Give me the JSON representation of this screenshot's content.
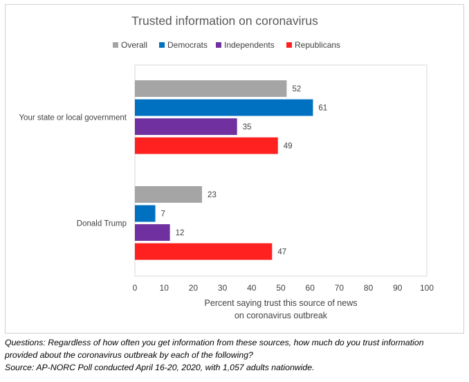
{
  "chart_data": {
    "type": "bar",
    "orientation": "horizontal",
    "title": "Trusted information on coronavirus",
    "xlabel_lines": [
      "Percent saying trust this source of news",
      "on coronavirus outbreak"
    ],
    "ylabel": "",
    "xlim": [
      0,
      100
    ],
    "x_ticks": [
      0,
      10,
      20,
      30,
      40,
      50,
      60,
      70,
      80,
      90,
      100
    ],
    "grid": false,
    "legend_position": "top",
    "categories": [
      "Your state or local government",
      "Donald Trump"
    ],
    "series": [
      {
        "name": "Overall",
        "color": "#a5a5a5",
        "values": [
          52,
          23
        ]
      },
      {
        "name": "Democrats",
        "color": "#0070c0",
        "values": [
          61,
          7
        ]
      },
      {
        "name": "Independents",
        "color": "#7030a0",
        "values": [
          35,
          12
        ]
      },
      {
        "name": "Republicans",
        "color": "#ff2020",
        "values": [
          49,
          47
        ]
      }
    ]
  },
  "caption": {
    "line1": "Questions: Regardless of how often you get information from these sources, how much do you trust information",
    "line2": "provided about the coronavirus outbreak by each of the following?",
    "line3": "Source: AP-NORC Poll conducted April 16-20, 2020, with 1,057 adults nationwide."
  }
}
